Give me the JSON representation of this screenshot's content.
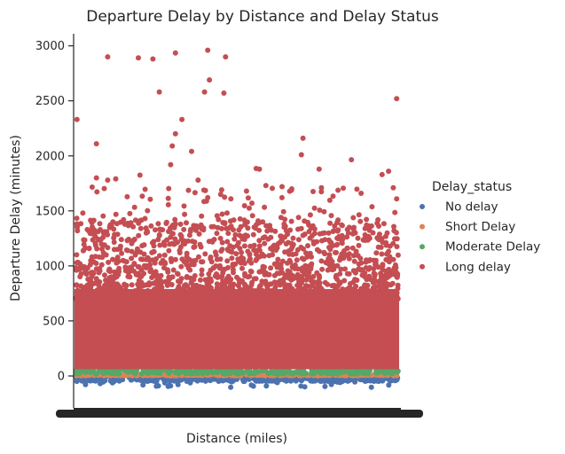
{
  "chart_data": {
    "type": "scatter",
    "title": "Departure Delay by Distance and Delay Status",
    "xlabel": "Distance (miles)",
    "ylabel": "Departure Delay (minutes)",
    "ylim": [
      -290,
      3110
    ],
    "y_ticks": [
      0,
      500,
      1000,
      1500,
      2000,
      2500,
      3000
    ],
    "x_axis": "categorical",
    "grid": false,
    "legend": {
      "title": "Delay_status",
      "placement": "right",
      "entries": [
        {
          "name": "No delay",
          "color": "#4c72b0"
        },
        {
          "name": "Short Delay",
          "color": "#dd8452"
        },
        {
          "name": "Moderate Delay",
          "color": "#55a868"
        },
        {
          "name": "Long delay",
          "color": "#c44e52"
        }
      ]
    },
    "series": [
      {
        "name": "No delay",
        "color": "#4c72b0",
        "y_range": [
          -100,
          0
        ]
      },
      {
        "name": "Short Delay",
        "color": "#dd8452",
        "y_range": [
          0,
          15
        ]
      },
      {
        "name": "Moderate Delay",
        "color": "#55a868",
        "y_range": [
          15,
          60
        ]
      },
      {
        "name": "Long delay",
        "color": "#c44e52",
        "y_range": [
          60,
          1400
        ],
        "outliers": [
          {
            "x": 0.005,
            "y": 2330
          },
          {
            "x": 0.1,
            "y": 2900
          },
          {
            "x": 0.195,
            "y": 2890
          },
          {
            "x": 0.24,
            "y": 2880
          },
          {
            "x": 0.31,
            "y": 2935
          },
          {
            "x": 0.41,
            "y": 2960
          },
          {
            "x": 0.465,
            "y": 2900
          },
          {
            "x": 0.415,
            "y": 2690
          },
          {
            "x": 0.26,
            "y": 2580
          },
          {
            "x": 0.4,
            "y": 2580
          },
          {
            "x": 0.46,
            "y": 2570
          },
          {
            "x": 0.995,
            "y": 2520
          },
          {
            "x": 0.33,
            "y": 2330
          },
          {
            "x": 0.31,
            "y": 2200
          },
          {
            "x": 0.065,
            "y": 2110
          },
          {
            "x": 0.3,
            "y": 2090
          },
          {
            "x": 0.36,
            "y": 2040
          },
          {
            "x": 0.705,
            "y": 2160
          },
          {
            "x": 0.7,
            "y": 2010
          },
          {
            "x": 0.855,
            "y": 1965
          },
          {
            "x": 0.295,
            "y": 1920
          },
          {
            "x": 0.56,
            "y": 1885
          },
          {
            "x": 0.57,
            "y": 1880
          },
          {
            "x": 0.755,
            "y": 1880
          },
          {
            "x": 0.97,
            "y": 1860
          },
          {
            "x": 0.065,
            "y": 1800
          },
          {
            "x": 0.1,
            "y": 1780
          },
          {
            "x": 0.125,
            "y": 1790
          },
          {
            "x": 0.2,
            "y": 1825
          },
          {
            "x": 0.59,
            "y": 1730
          },
          {
            "x": 0.95,
            "y": 1830
          },
          {
            "x": 0.38,
            "y": 1780
          },
          {
            "x": 0.64,
            "y": 1720
          },
          {
            "x": 0.41,
            "y": 1620
          },
          {
            "x": 0.53,
            "y": 1680
          },
          {
            "x": 0.67,
            "y": 1700
          },
          {
            "x": 0.885,
            "y": 1660
          },
          {
            "x": 0.995,
            "y": 1610
          }
        ]
      }
    ]
  }
}
